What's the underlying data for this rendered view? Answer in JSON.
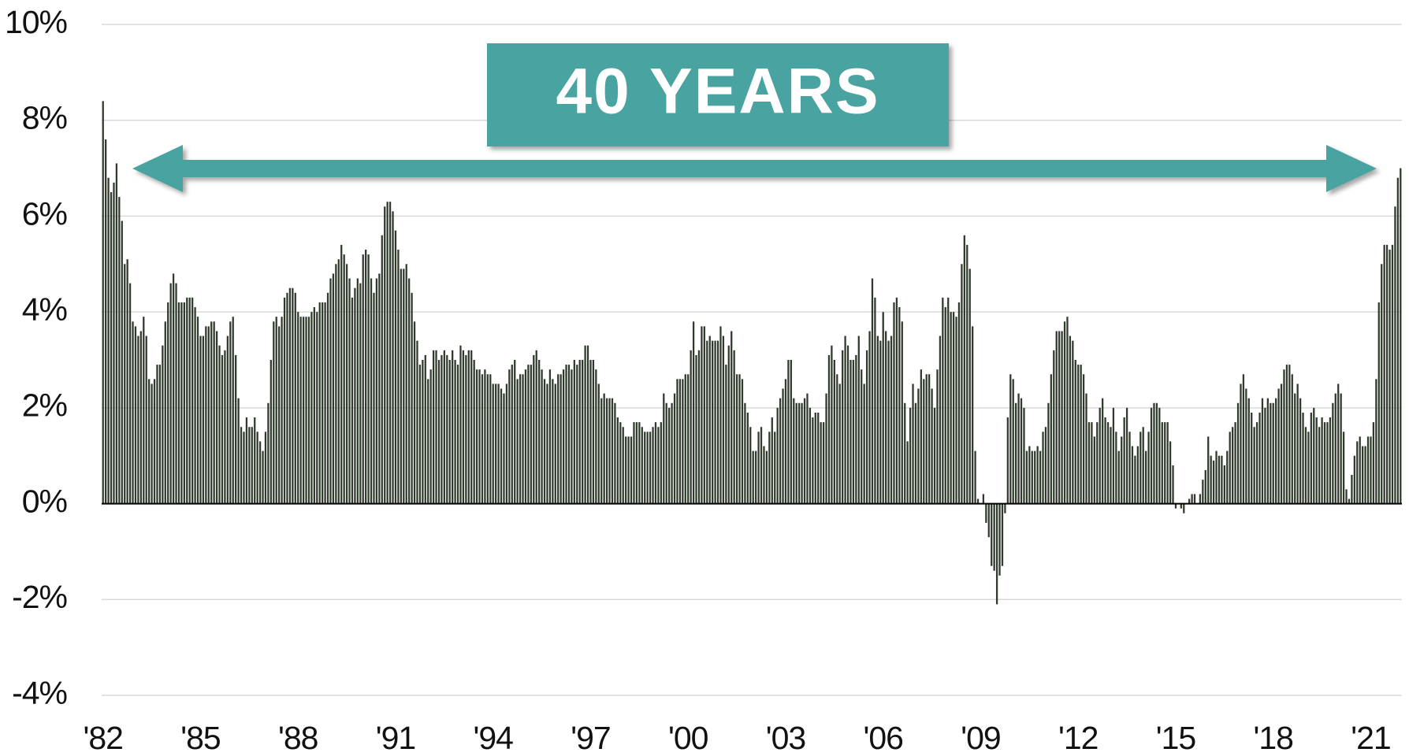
{
  "chart_data": {
    "type": "bar",
    "annotation": "40 YEARS",
    "color": "#2f3a2c",
    "grid": true,
    "ylim": [
      -4,
      10
    ],
    "yticks": [
      {
        "value": -4,
        "label": "-4%"
      },
      {
        "value": -2,
        "label": "-2%"
      },
      {
        "value": 0,
        "label": "0%"
      },
      {
        "value": 2,
        "label": "2%"
      },
      {
        "value": 4,
        "label": "4%"
      },
      {
        "value": 6,
        "label": "6%"
      },
      {
        "value": 8,
        "label": "8%"
      },
      {
        "value": 10,
        "label": "10%"
      }
    ],
    "categories": [
      "'82",
      null,
      null,
      null,
      null,
      null,
      null,
      null,
      null,
      null,
      null,
      null,
      null,
      null,
      null,
      null,
      null,
      null,
      null,
      null,
      null,
      null,
      null,
      null,
      null,
      null,
      null,
      null,
      null,
      null,
      null,
      null,
      null,
      null,
      null,
      null,
      "'85",
      null,
      null,
      null,
      null,
      null,
      null,
      null,
      null,
      null,
      null,
      null,
      null,
      null,
      null,
      null,
      null,
      null,
      null,
      null,
      null,
      null,
      null,
      null,
      null,
      null,
      null,
      null,
      null,
      null,
      null,
      null,
      null,
      null,
      null,
      null,
      "'88",
      null,
      null,
      null,
      null,
      null,
      null,
      null,
      null,
      null,
      null,
      null,
      null,
      null,
      null,
      null,
      null,
      null,
      null,
      null,
      null,
      null,
      null,
      null,
      null,
      null,
      null,
      null,
      null,
      null,
      null,
      null,
      null,
      null,
      null,
      null,
      "'91",
      null,
      null,
      null,
      null,
      null,
      null,
      null,
      null,
      null,
      null,
      null,
      null,
      null,
      null,
      null,
      null,
      null,
      null,
      null,
      null,
      null,
      null,
      null,
      null,
      null,
      null,
      null,
      null,
      null,
      null,
      null,
      null,
      null,
      null,
      null,
      "'94",
      null,
      null,
      null,
      null,
      null,
      null,
      null,
      null,
      null,
      null,
      null,
      null,
      null,
      null,
      null,
      null,
      null,
      null,
      null,
      null,
      null,
      null,
      null,
      null,
      null,
      null,
      null,
      null,
      null,
      null,
      null,
      null,
      null,
      null,
      null,
      "'97",
      null,
      null,
      null,
      null,
      null,
      null,
      null,
      null,
      null,
      null,
      null,
      null,
      null,
      null,
      null,
      null,
      null,
      null,
      null,
      null,
      null,
      null,
      null,
      null,
      null,
      null,
      null,
      null,
      null,
      null,
      null,
      null,
      null,
      null,
      null,
      "'00",
      null,
      null,
      null,
      null,
      null,
      null,
      null,
      null,
      null,
      null,
      null,
      null,
      null,
      null,
      null,
      null,
      null,
      null,
      null,
      null,
      null,
      null,
      null,
      null,
      null,
      null,
      null,
      null,
      null,
      null,
      null,
      null,
      null,
      null,
      null,
      "'03",
      null,
      null,
      null,
      null,
      null,
      null,
      null,
      null,
      null,
      null,
      null,
      null,
      null,
      null,
      null,
      null,
      null,
      null,
      null,
      null,
      null,
      null,
      null,
      null,
      null,
      null,
      null,
      null,
      null,
      null,
      null,
      null,
      null,
      null,
      null,
      "'06",
      null,
      null,
      null,
      null,
      null,
      null,
      null,
      null,
      null,
      null,
      null,
      null,
      null,
      null,
      null,
      null,
      null,
      null,
      null,
      null,
      null,
      null,
      null,
      null,
      null,
      null,
      null,
      null,
      null,
      null,
      null,
      null,
      null,
      null,
      null,
      "'09",
      null,
      null,
      null,
      null,
      null,
      null,
      null,
      null,
      null,
      null,
      null,
      null,
      null,
      null,
      null,
      null,
      null,
      null,
      null,
      null,
      null,
      null,
      null,
      null,
      null,
      null,
      null,
      null,
      null,
      null,
      null,
      null,
      null,
      null,
      null,
      "'12",
      null,
      null,
      null,
      null,
      null,
      null,
      null,
      null,
      null,
      null,
      null,
      null,
      null,
      null,
      null,
      null,
      null,
      null,
      null,
      null,
      null,
      null,
      null,
      null,
      null,
      null,
      null,
      null,
      null,
      null,
      null,
      null,
      null,
      null,
      null,
      "'15",
      null,
      null,
      null,
      null,
      null,
      null,
      null,
      null,
      null,
      null,
      null,
      null,
      null,
      null,
      null,
      null,
      null,
      null,
      null,
      null,
      null,
      null,
      null,
      null,
      null,
      null,
      null,
      null,
      null,
      null,
      null,
      null,
      null,
      null,
      null,
      "'18",
      null,
      null,
      null,
      null,
      null,
      null,
      null,
      null,
      null,
      null,
      null,
      null,
      null,
      null,
      null,
      null,
      null,
      null,
      null,
      null,
      null,
      null,
      null,
      null,
      null,
      null,
      null,
      null,
      null,
      null,
      null,
      null,
      null,
      null,
      null,
      "'21",
      null,
      null,
      null,
      null,
      null,
      null,
      null,
      null,
      null,
      null,
      null
    ],
    "values": [
      8.4,
      7.6,
      6.8,
      6.5,
      6.7,
      7.1,
      6.4,
      5.9,
      5.0,
      5.1,
      4.6,
      3.8,
      3.7,
      3.5,
      3.6,
      3.9,
      3.5,
      2.6,
      2.5,
      2.6,
      2.9,
      2.9,
      3.3,
      3.8,
      4.2,
      4.6,
      4.8,
      4.6,
      4.2,
      4.2,
      4.2,
      4.3,
      4.3,
      4.3,
      4.1,
      3.9,
      3.5,
      3.5,
      3.7,
      3.7,
      3.8,
      3.8,
      3.6,
      3.3,
      3.1,
      3.2,
      3.5,
      3.8,
      3.9,
      3.1,
      2.2,
      1.6,
      1.5,
      1.8,
      1.6,
      1.6,
      1.8,
      1.5,
      1.3,
      1.1,
      1.5,
      2.1,
      3.0,
      3.8,
      3.9,
      3.7,
      3.9,
      4.3,
      4.4,
      4.5,
      4.5,
      4.4,
      4.0,
      3.9,
      3.9,
      3.9,
      3.9,
      4.0,
      4.1,
      4.0,
      4.2,
      4.2,
      4.2,
      4.4,
      4.7,
      4.8,
      5.0,
      5.1,
      5.4,
      5.2,
      5.0,
      4.7,
      4.3,
      4.5,
      4.7,
      4.6,
      5.2,
      5.3,
      5.2,
      4.7,
      4.4,
      4.7,
      4.8,
      5.6,
      6.2,
      6.3,
      6.3,
      6.1,
      5.7,
      5.3,
      4.9,
      4.9,
      5.0,
      4.7,
      4.4,
      3.8,
      3.4,
      2.9,
      3.0,
      3.1,
      2.6,
      2.8,
      3.2,
      3.2,
      3.0,
      3.1,
      3.2,
      3.1,
      3.0,
      3.2,
      3.0,
      2.9,
      3.3,
      3.2,
      3.1,
      3.2,
      3.2,
      3.0,
      2.8,
      2.8,
      2.7,
      2.8,
      2.7,
      2.7,
      2.5,
      2.5,
      2.5,
      2.4,
      2.3,
      2.5,
      2.8,
      2.9,
      3.0,
      2.6,
      2.7,
      2.7,
      2.8,
      2.9,
      2.9,
      3.1,
      3.2,
      3.0,
      2.8,
      2.6,
      2.5,
      2.8,
      2.6,
      2.5,
      2.7,
      2.7,
      2.8,
      2.9,
      2.9,
      2.8,
      3.0,
      2.9,
      3.0,
      3.0,
      3.3,
      3.3,
      3.0,
      3.0,
      2.8,
      2.5,
      2.2,
      2.3,
      2.2,
      2.2,
      2.2,
      2.1,
      1.8,
      1.7,
      1.6,
      1.4,
      1.4,
      1.4,
      1.7,
      1.7,
      1.7,
      1.6,
      1.5,
      1.5,
      1.5,
      1.6,
      1.7,
      1.6,
      1.7,
      2.3,
      2.1,
      2.0,
      2.1,
      2.3,
      2.6,
      2.6,
      2.6,
      2.7,
      2.7,
      3.2,
      3.8,
      3.1,
      3.2,
      3.7,
      3.7,
      3.4,
      3.5,
      3.4,
      3.4,
      3.4,
      3.7,
      3.5,
      2.9,
      3.3,
      3.6,
      3.2,
      2.7,
      2.7,
      2.6,
      2.1,
      1.9,
      1.6,
      1.1,
      1.1,
      1.5,
      1.6,
      1.2,
      1.1,
      1.5,
      1.8,
      1.5,
      2.0,
      2.2,
      2.4,
      2.6,
      3.0,
      3.0,
      2.2,
      2.1,
      2.1,
      2.1,
      2.2,
      2.3,
      2.0,
      1.8,
      1.9,
      1.9,
      1.7,
      1.7,
      2.3,
      3.1,
      3.3,
      3.0,
      2.7,
      2.5,
      3.2,
      3.5,
      3.3,
      3.0,
      3.0,
      3.1,
      3.5,
      2.8,
      2.5,
      3.2,
      3.6,
      4.7,
      4.3,
      3.5,
      3.4,
      4.0,
      3.6,
      3.4,
      3.5,
      4.2,
      4.3,
      4.1,
      3.8,
      2.1,
      1.3,
      2.0,
      2.5,
      2.1,
      2.4,
      2.8,
      2.6,
      2.7,
      2.7,
      2.4,
      2.0,
      2.8,
      3.5,
      4.3,
      4.1,
      4.3,
      4.0,
      4.0,
      3.9,
      4.2,
      5.0,
      5.6,
      5.4,
      4.9,
      3.7,
      1.1,
      0.1,
      0.0,
      0.2,
      -0.4,
      -0.7,
      -1.3,
      -1.4,
      -2.1,
      -1.5,
      -1.3,
      -0.2,
      1.8,
      2.7,
      2.6,
      2.1,
      2.3,
      2.2,
      2.0,
      1.1,
      1.2,
      1.1,
      1.1,
      1.2,
      1.1,
      1.5,
      1.6,
      2.1,
      2.7,
      3.2,
      3.6,
      3.6,
      3.6,
      3.8,
      3.9,
      3.5,
      3.4,
      3.0,
      2.9,
      2.9,
      2.7,
      2.3,
      1.7,
      1.7,
      1.4,
      1.7,
      2.0,
      2.2,
      1.8,
      1.7,
      1.6,
      2.0,
      1.5,
      1.1,
      1.4,
      1.8,
      2.0,
      1.5,
      1.2,
      1.0,
      1.2,
      1.5,
      1.6,
      1.1,
      1.5,
      2.0,
      2.1,
      2.1,
      2.0,
      1.7,
      1.7,
      1.7,
      1.3,
      0.8,
      -0.1,
      0.0,
      -0.1,
      -0.2,
      0.0,
      0.1,
      0.2,
      0.2,
      0.0,
      0.2,
      0.5,
      0.7,
      1.4,
      1.0,
      0.9,
      1.1,
      1.0,
      1.0,
      0.8,
      1.1,
      1.5,
      1.6,
      1.7,
      2.1,
      2.5,
      2.7,
      2.4,
      2.2,
      1.9,
      1.6,
      1.7,
      1.9,
      2.2,
      2.0,
      2.2,
      2.1,
      2.1,
      2.2,
      2.4,
      2.5,
      2.8,
      2.9,
      2.9,
      2.7,
      2.3,
      2.5,
      2.2,
      1.9,
      1.6,
      1.5,
      1.9,
      2.0,
      1.8,
      1.6,
      1.8,
      1.7,
      1.7,
      1.8,
      2.1,
      2.3,
      2.5,
      2.3,
      1.5,
      0.3,
      0.1,
      0.6,
      1.0,
      1.3,
      1.4,
      1.2,
      1.2,
      1.4,
      1.4,
      1.7,
      2.6,
      4.2,
      5.0,
      5.4,
      5.4,
      5.3,
      5.4,
      6.2,
      6.8,
      7.0
    ]
  }
}
